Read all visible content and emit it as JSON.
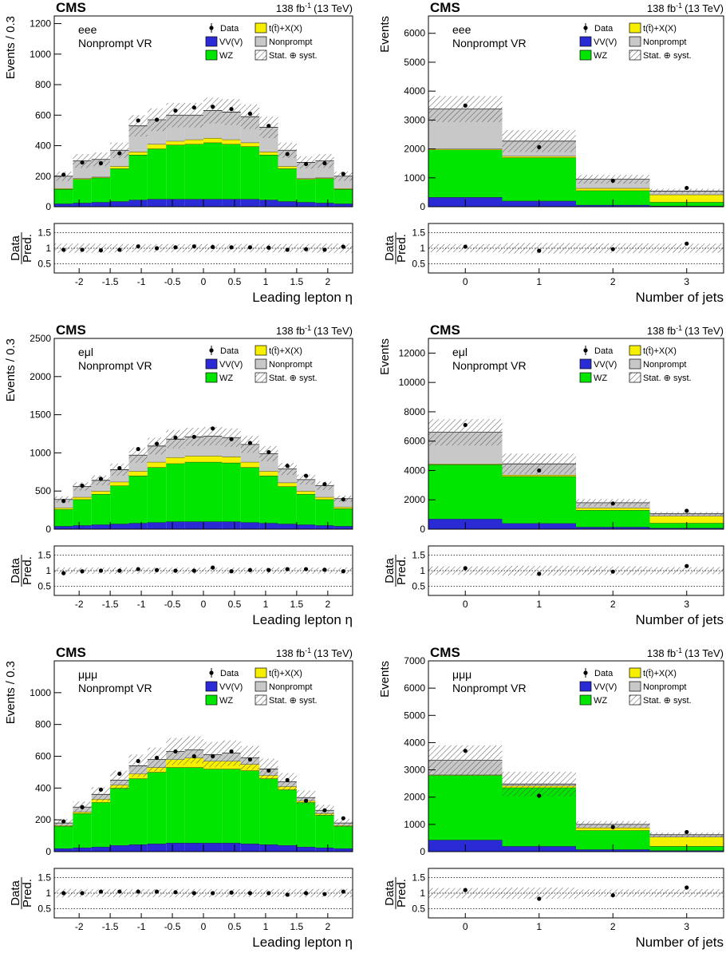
{
  "chart_data": [
    {
      "type": "histogram",
      "experiment": "CMS",
      "lumi": {
        "text": "138 fb",
        "sup": "-1",
        "suffix": "(13 TeV)"
      },
      "channel": "eee",
      "region": "Nonprompt VR",
      "ylabel": "Events / 0.3",
      "xlabel": "Leading lepton η",
      "bins": [
        -2.4,
        -2.1,
        -1.8,
        -1.5,
        -1.2,
        -0.9,
        -0.6,
        -0.3,
        0,
        0.3,
        0.6,
        0.9,
        1.2,
        1.5,
        1.8,
        2.1,
        2.4
      ],
      "xlim": [
        -2.4,
        2.4
      ],
      "xticks": [
        -2,
        -1.5,
        -1,
        -0.5,
        0,
        0.5,
        1,
        1.5,
        2
      ],
      "ylim": [
        0,
        1250
      ],
      "yticks": [
        0,
        200,
        400,
        600,
        800,
        1000,
        1200
      ],
      "series": [
        {
          "name": "VV(V)",
          "color": "#2b2bd6",
          "values": [
            20,
            25,
            30,
            35,
            45,
            50,
            50,
            50,
            50,
            50,
            50,
            45,
            35,
            30,
            25,
            20
          ]
        },
        {
          "name": "WZ",
          "color": "#00e600",
          "values": [
            95,
            155,
            160,
            215,
            295,
            330,
            355,
            360,
            370,
            360,
            345,
            295,
            215,
            150,
            160,
            95
          ]
        },
        {
          "name": "t(t̄)+X(X)",
          "color": "#f7ef00",
          "values": [
            5,
            5,
            5,
            15,
            20,
            30,
            25,
            30,
            30,
            30,
            25,
            20,
            15,
            5,
            5,
            5
          ]
        },
        {
          "name": "Nonprompt",
          "color": "#c8c8c8",
          "values": [
            80,
            115,
            115,
            105,
            170,
            160,
            170,
            160,
            180,
            180,
            170,
            160,
            105,
            105,
            110,
            80
          ]
        }
      ],
      "data": {
        "name": "Data",
        "values": [
          210,
          290,
          285,
          350,
          565,
          570,
          630,
          650,
          655,
          640,
          610,
          530,
          345,
          280,
          285,
          215
        ]
      },
      "uncertainty": {
        "name": "Stat. ⊕ syst.",
        "values": [
          30,
          45,
          45,
          50,
          70,
          75,
          80,
          80,
          85,
          85,
          80,
          70,
          50,
          40,
          45,
          30
        ]
      },
      "ratio": {
        "ylabel": {
          "numerator": "Data",
          "denominator": "Pred."
        },
        "ylim": [
          0.2,
          1.8
        ],
        "yticks": [
          0.5,
          1,
          1.5
        ],
        "values": [
          0.95,
          0.95,
          0.93,
          0.95,
          1.06,
          1.0,
          1.03,
          1.06,
          1.04,
          1.03,
          1.03,
          1.02,
          0.95,
          0.97,
          0.95,
          1.05
        ]
      }
    },
    {
      "type": "histogram",
      "experiment": "CMS",
      "lumi": {
        "text": "138 fb",
        "sup": "-1",
        "suffix": "(13 TeV)"
      },
      "channel": "eee",
      "region": "Nonprompt VR",
      "ylabel": "Events",
      "xlabel": "Number of jets",
      "bins": [
        -0.5,
        0.5,
        1.5,
        2.5,
        3.5
      ],
      "xlim": [
        -0.5,
        3.5
      ],
      "xticks": [
        0,
        1,
        2,
        3
      ],
      "ylim": [
        0,
        6600
      ],
      "yticks": [
        0,
        1000,
        2000,
        3000,
        4000,
        5000,
        6000
      ],
      "series": [
        {
          "name": "VV(V)",
          "color": "#2b2bd6",
          "values": [
            330,
            200,
            60,
            30
          ]
        },
        {
          "name": "WZ",
          "color": "#00e600",
          "values": [
            1640,
            1500,
            500,
            130
          ]
        },
        {
          "name": "t(t̄)+X(X)",
          "color": "#f7ef00",
          "values": [
            30,
            50,
            80,
            260
          ]
        },
        {
          "name": "Nonprompt",
          "color": "#c8c8c8",
          "values": [
            1380,
            520,
            310,
            120
          ]
        }
      ],
      "data": {
        "name": "Data",
        "values": [
          3500,
          2060,
          900,
          650
        ]
      },
      "uncertainty": {
        "name": "Stat. ⊕ syst.",
        "values": [
          450,
          380,
          150,
          80
        ]
      },
      "ratio": {
        "ylabel": {
          "numerator": "Data",
          "denominator": "Pred."
        },
        "ylim": [
          0.2,
          1.8
        ],
        "yticks": [
          0.5,
          1,
          1.5
        ],
        "values": [
          1.05,
          0.92,
          0.97,
          1.15
        ]
      }
    },
    {
      "type": "histogram",
      "experiment": "CMS",
      "lumi": {
        "text": "138 fb",
        "sup": "-1",
        "suffix": "(13 TeV)"
      },
      "channel": "eμl",
      "region": "Nonprompt VR",
      "ylabel": "Events / 0.3",
      "xlabel": "Leading lepton η",
      "bins": [
        -2.4,
        -2.1,
        -1.8,
        -1.5,
        -1.2,
        -0.9,
        -0.6,
        -0.3,
        0,
        0.3,
        0.6,
        0.9,
        1.2,
        1.5,
        1.8,
        2.1,
        2.4
      ],
      "xlim": [
        -2.4,
        2.4
      ],
      "xticks": [
        -2,
        -1.5,
        -1,
        -0.5,
        0,
        0.5,
        1,
        1.5,
        2
      ],
      "ylim": [
        0,
        2500
      ],
      "yticks": [
        0,
        500,
        1000,
        1500,
        2000,
        2500
      ],
      "series": [
        {
          "name": "VV(V)",
          "color": "#2b2bd6",
          "values": [
            40,
            50,
            60,
            70,
            80,
            90,
            100,
            100,
            100,
            100,
            90,
            80,
            70,
            60,
            50,
            40
          ]
        },
        {
          "name": "WZ",
          "color": "#00e600",
          "values": [
            220,
            340,
            400,
            500,
            620,
            720,
            760,
            780,
            780,
            770,
            720,
            620,
            490,
            400,
            340,
            230
          ]
        },
        {
          "name": "t(t̄)+X(X)",
          "color": "#f7ef00",
          "values": [
            20,
            30,
            40,
            50,
            60,
            70,
            80,
            80,
            80,
            80,
            70,
            60,
            50,
            40,
            30,
            20
          ]
        },
        {
          "name": "Nonprompt",
          "color": "#c8c8c8",
          "values": [
            110,
            140,
            140,
            160,
            210,
            210,
            240,
            250,
            260,
            250,
            230,
            230,
            180,
            150,
            150,
            110
          ]
        }
      ],
      "data": {
        "name": "Data",
        "values": [
          370,
          570,
          660,
          800,
          1050,
          1120,
          1200,
          1210,
          1320,
          1180,
          1130,
          1010,
          830,
          700,
          590,
          390
        ]
      },
      "uncertainty": {
        "name": "Stat. ⊕ syst.",
        "values": [
          40,
          55,
          65,
          80,
          100,
          110,
          120,
          120,
          120,
          120,
          110,
          100,
          80,
          65,
          55,
          40
        ]
      },
      "ratio": {
        "ylabel": {
          "numerator": "Data",
          "denominator": "Pred."
        },
        "ylim": [
          0.2,
          1.8
        ],
        "yticks": [
          0.5,
          1,
          1.5
        ],
        "values": [
          0.92,
          0.98,
          1.0,
          1.0,
          1.05,
          1.02,
          1.0,
          1.0,
          1.1,
          0.98,
          1.02,
          1.02,
          1.05,
          1.05,
          1.03,
          0.98
        ]
      }
    },
    {
      "type": "histogram",
      "experiment": "CMS",
      "lumi": {
        "text": "138 fb",
        "sup": "-1",
        "suffix": "(13 TeV)"
      },
      "channel": "eμl",
      "region": "Nonprompt VR",
      "ylabel": "Events",
      "xlabel": "Number of jets",
      "bins": [
        -0.5,
        0.5,
        1.5,
        2.5,
        3.5
      ],
      "xlim": [
        -0.5,
        3.5
      ],
      "xticks": [
        0,
        1,
        2,
        3
      ],
      "ylim": [
        0,
        13000
      ],
      "yticks": [
        0,
        2000,
        4000,
        6000,
        8000,
        10000,
        12000
      ],
      "series": [
        {
          "name": "VV(V)",
          "color": "#2b2bd6",
          "values": [
            700,
            400,
            150,
            80
          ]
        },
        {
          "name": "WZ",
          "color": "#00e600",
          "values": [
            3700,
            3200,
            1150,
            340
          ]
        },
        {
          "name": "t(t̄)+X(X)",
          "color": "#f7ef00",
          "values": [
            50,
            100,
            150,
            480
          ]
        },
        {
          "name": "Nonprompt",
          "color": "#c8c8c8",
          "values": [
            2150,
            750,
            350,
            150
          ]
        }
      ],
      "data": {
        "name": "Data",
        "values": [
          7100,
          4000,
          1750,
          1250
        ]
      },
      "uncertainty": {
        "name": "Stat. ⊕ syst.",
        "values": [
          900,
          700,
          250,
          120
        ]
      },
      "ratio": {
        "ylabel": {
          "numerator": "Data",
          "denominator": "Pred."
        },
        "ylim": [
          0.2,
          1.8
        ],
        "yticks": [
          0.5,
          1,
          1.5
        ],
        "values": [
          1.08,
          0.9,
          0.97,
          1.15
        ]
      }
    },
    {
      "type": "histogram",
      "experiment": "CMS",
      "lumi": {
        "text": "138 fb",
        "sup": "-1",
        "suffix": "(13 TeV)"
      },
      "channel": "μμμ",
      "region": "Nonprompt VR",
      "ylabel": "Events / 0.3",
      "xlabel": "Leading lepton η",
      "bins": [
        -2.4,
        -2.1,
        -1.8,
        -1.5,
        -1.2,
        -0.9,
        -0.6,
        -0.3,
        0,
        0.3,
        0.6,
        0.9,
        1.2,
        1.5,
        1.8,
        2.1,
        2.4
      ],
      "xlim": [
        -2.4,
        2.4
      ],
      "xticks": [
        -2,
        -1.5,
        -1,
        -0.5,
        0,
        0.5,
        1,
        1.5,
        2
      ],
      "ylim": [
        0,
        1200
      ],
      "yticks": [
        0,
        200,
        400,
        600,
        800,
        1000
      ],
      "series": [
        {
          "name": "VV(V)",
          "color": "#2b2bd6",
          "values": [
            20,
            25,
            30,
            40,
            45,
            50,
            55,
            55,
            55,
            55,
            50,
            45,
            40,
            30,
            25,
            20
          ]
        },
        {
          "name": "WZ",
          "color": "#00e600",
          "values": [
            140,
            215,
            280,
            360,
            415,
            450,
            475,
            475,
            465,
            465,
            460,
            415,
            350,
            280,
            205,
            140
          ]
        },
        {
          "name": "t(t̄)+X(X)",
          "color": "#f7ef00",
          "values": [
            5,
            10,
            20,
            20,
            30,
            30,
            50,
            60,
            50,
            50,
            40,
            20,
            20,
            10,
            10,
            5
          ]
        },
        {
          "name": "Nonprompt",
          "color": "#c8c8c8",
          "values": [
            15,
            30,
            30,
            30,
            50,
            50,
            50,
            50,
            40,
            50,
            40,
            40,
            30,
            20,
            20,
            15
          ]
        }
      ],
      "data": {
        "name": "Data",
        "values": [
          190,
          280,
          390,
          490,
          570,
          590,
          630,
          600,
          600,
          630,
          580,
          510,
          450,
          320,
          260,
          210
        ]
      },
      "uncertainty": {
        "name": "Stat. ⊕ syst.",
        "values": [
          25,
          35,
          45,
          60,
          70,
          75,
          85,
          85,
          80,
          80,
          75,
          65,
          55,
          45,
          35,
          25
        ]
      },
      "ratio": {
        "ylabel": {
          "numerator": "Data",
          "denominator": "Pred."
        },
        "ylim": [
          0.2,
          1.8
        ],
        "yticks": [
          0.5,
          1,
          1.5
        ],
        "values": [
          1.0,
          1.0,
          1.05,
          1.05,
          1.05,
          1.05,
          1.03,
          1.0,
          1.0,
          1.02,
          1.0,
          1.0,
          0.95,
          1.0,
          0.97,
          1.05
        ]
      }
    },
    {
      "type": "histogram",
      "experiment": "CMS",
      "lumi": {
        "text": "138 fb",
        "sup": "-1",
        "suffix": "(13 TeV)"
      },
      "channel": "μμμ",
      "region": "Nonprompt VR",
      "ylabel": "Events",
      "xlabel": "Number of jets",
      "bins": [
        -0.5,
        0.5,
        1.5,
        2.5,
        3.5
      ],
      "xlim": [
        -0.5,
        3.5
      ],
      "xticks": [
        0,
        1,
        2,
        3
      ],
      "ylim": [
        0,
        7000
      ],
      "yticks": [
        0,
        1000,
        2000,
        3000,
        4000,
        5000,
        6000,
        7000
      ],
      "series": [
        {
          "name": "VV(V)",
          "color": "#2b2bd6",
          "values": [
            430,
            200,
            80,
            40
          ]
        },
        {
          "name": "WZ",
          "color": "#00e600",
          "values": [
            2370,
            2150,
            700,
            160
          ]
        },
        {
          "name": "t(t̄)+X(X)",
          "color": "#f7ef00",
          "values": [
            20,
            70,
            100,
            340
          ]
        },
        {
          "name": "Nonprompt",
          "color": "#c8c8c8",
          "values": [
            530,
            60,
            120,
            80
          ]
        }
      ],
      "data": {
        "name": "Data",
        "values": [
          3700,
          2050,
          900,
          720
        ]
      },
      "uncertainty": {
        "name": "Stat. ⊕ syst.",
        "values": [
          550,
          450,
          120,
          80
        ]
      },
      "ratio": {
        "ylabel": {
          "numerator": "Data",
          "denominator": "Pred."
        },
        "ylim": [
          0.2,
          1.8
        ],
        "yticks": [
          0.5,
          1,
          1.5
        ],
        "values": [
          1.1,
          0.82,
          0.93,
          1.18
        ]
      }
    }
  ]
}
